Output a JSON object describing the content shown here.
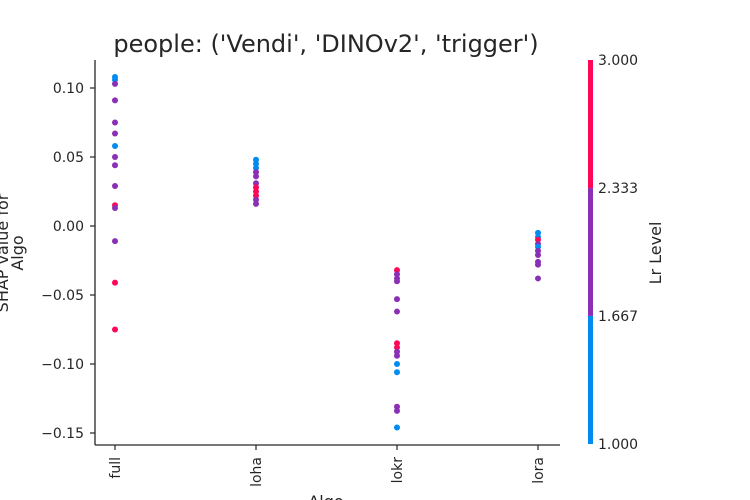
{
  "chart_data": {
    "type": "scatter",
    "title": "people: ('Vendi', 'DINOv2', 'trigger')",
    "xlabel": "Algo",
    "ylabel_line1": "SHAP value for",
    "ylabel_line2": "Algo",
    "categories": [
      "full",
      "loha",
      "lokr",
      "lora"
    ],
    "ylim": [
      -0.158,
      0.12
    ],
    "yticks": [
      {
        "value": 0.1,
        "label": "0.10"
      },
      {
        "value": 0.05,
        "label": "0.05"
      },
      {
        "value": 0.0,
        "label": "0.00"
      },
      {
        "value": -0.05,
        "label": "−0.05"
      },
      {
        "value": -0.1,
        "label": "−0.10"
      },
      {
        "value": -0.15,
        "label": "−0.15"
      }
    ],
    "colorbar": {
      "label": "Lr Level",
      "range": [
        1.0,
        3.0
      ],
      "ticks": [
        {
          "value": 1.0,
          "label": "1.000"
        },
        {
          "value": 1.667,
          "label": "1.667"
        },
        {
          "value": 2.333,
          "label": "2.333"
        },
        {
          "value": 3.0,
          "label": "3.000"
        }
      ],
      "bands": [
        {
          "from": 1.0,
          "to": 1.667,
          "color": "#008bf0"
        },
        {
          "from": 1.667,
          "to": 2.333,
          "color": "#8b2fb5"
        },
        {
          "from": 2.333,
          "to": 3.0,
          "color": "#ff0757"
        }
      ]
    },
    "colors": {
      "low": "#008bf0",
      "mid": "#8b2fb5",
      "high": "#ff0757"
    },
    "points": [
      {
        "x": "full",
        "y": 0.108,
        "level": 1
      },
      {
        "x": "full",
        "y": 0.106,
        "level": 1
      },
      {
        "x": "full",
        "y": 0.103,
        "level": 2
      },
      {
        "x": "full",
        "y": 0.091,
        "level": 2
      },
      {
        "x": "full",
        "y": 0.075,
        "level": 2
      },
      {
        "x": "full",
        "y": 0.067,
        "level": 2
      },
      {
        "x": "full",
        "y": 0.058,
        "level": 1
      },
      {
        "x": "full",
        "y": 0.05,
        "level": 2
      },
      {
        "x": "full",
        "y": 0.044,
        "level": 2
      },
      {
        "x": "full",
        "y": 0.029,
        "level": 2
      },
      {
        "x": "full",
        "y": 0.015,
        "level": 3
      },
      {
        "x": "full",
        "y": 0.013,
        "level": 2
      },
      {
        "x": "full",
        "y": -0.011,
        "level": 2
      },
      {
        "x": "full",
        "y": -0.041,
        "level": 3
      },
      {
        "x": "full",
        "y": -0.075,
        "level": 3
      },
      {
        "x": "loha",
        "y": 0.048,
        "level": 1
      },
      {
        "x": "loha",
        "y": 0.045,
        "level": 1
      },
      {
        "x": "loha",
        "y": 0.042,
        "level": 1
      },
      {
        "x": "loha",
        "y": 0.039,
        "level": 2
      },
      {
        "x": "loha",
        "y": 0.036,
        "level": 2
      },
      {
        "x": "loha",
        "y": 0.031,
        "level": 2
      },
      {
        "x": "loha",
        "y": 0.028,
        "level": 3
      },
      {
        "x": "loha",
        "y": 0.025,
        "level": 3
      },
      {
        "x": "loha",
        "y": 0.022,
        "level": 3
      },
      {
        "x": "loha",
        "y": 0.019,
        "level": 2
      },
      {
        "x": "loha",
        "y": 0.016,
        "level": 2
      },
      {
        "x": "lokr",
        "y": -0.032,
        "level": 3
      },
      {
        "x": "lokr",
        "y": -0.035,
        "level": 2
      },
      {
        "x": "lokr",
        "y": -0.038,
        "level": 2
      },
      {
        "x": "lokr",
        "y": -0.04,
        "level": 2
      },
      {
        "x": "lokr",
        "y": -0.053,
        "level": 2
      },
      {
        "x": "lokr",
        "y": -0.062,
        "level": 2
      },
      {
        "x": "lokr",
        "y": -0.085,
        "level": 3
      },
      {
        "x": "lokr",
        "y": -0.088,
        "level": 3
      },
      {
        "x": "lokr",
        "y": -0.091,
        "level": 2
      },
      {
        "x": "lokr",
        "y": -0.094,
        "level": 2
      },
      {
        "x": "lokr",
        "y": -0.1,
        "level": 1
      },
      {
        "x": "lokr",
        "y": -0.106,
        "level": 1
      },
      {
        "x": "lokr",
        "y": -0.131,
        "level": 2
      },
      {
        "x": "lokr",
        "y": -0.134,
        "level": 2
      },
      {
        "x": "lokr",
        "y": -0.146,
        "level": 1
      },
      {
        "x": "lora",
        "y": -0.005,
        "level": 1
      },
      {
        "x": "lora",
        "y": -0.008,
        "level": 1
      },
      {
        "x": "lora",
        "y": -0.01,
        "level": 3
      },
      {
        "x": "lora",
        "y": -0.013,
        "level": 2
      },
      {
        "x": "lora",
        "y": -0.015,
        "level": 1
      },
      {
        "x": "lora",
        "y": -0.018,
        "level": 2
      },
      {
        "x": "lora",
        "y": -0.021,
        "level": 2
      },
      {
        "x": "lora",
        "y": -0.026,
        "level": 2
      },
      {
        "x": "lora",
        "y": -0.028,
        "level": 2
      },
      {
        "x": "lora",
        "y": -0.038,
        "level": 2
      }
    ]
  }
}
